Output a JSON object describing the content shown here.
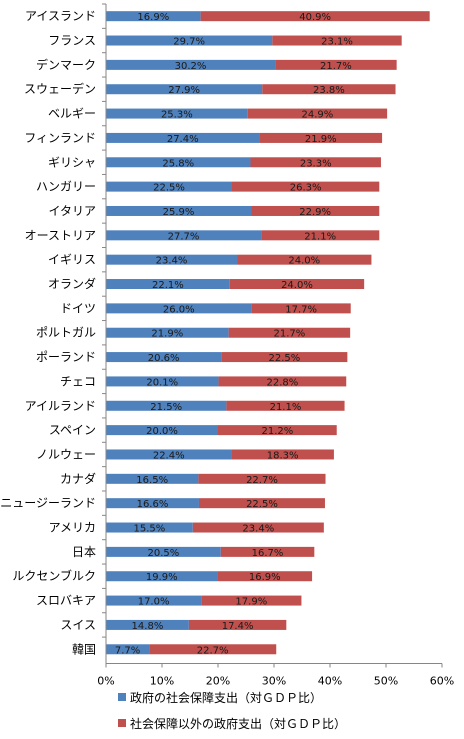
{
  "chart_data": {
    "type": "bar",
    "orientation": "horizontal",
    "stacked": true,
    "categories": [
      "アイスランド",
      "フランス",
      "デンマーク",
      "スウェーデン",
      "ベルギー",
      "フィンランド",
      "ギリシャ",
      "ハンガリー",
      "イタリア",
      "オーストリア",
      "イギリス",
      "オランダ",
      "ドイツ",
      "ポルトガル",
      "ポーランド",
      "チェコ",
      "アイルランド",
      "スペイン",
      "ノルウェー",
      "カナダ",
      "ニュージーランド",
      "アメリカ",
      "日本",
      "ルクセンブルク",
      "スロバキア",
      "スイス",
      "韓国"
    ],
    "series": [
      {
        "name": "政府の社会保障支出（対ＧＤＰ比）",
        "color": "#4f81bd",
        "values": [
          16.9,
          29.7,
          30.2,
          27.9,
          25.3,
          27.4,
          25.8,
          22.5,
          25.9,
          27.7,
          23.4,
          22.1,
          26.0,
          21.9,
          20.6,
          20.1,
          21.5,
          20.0,
          22.4,
          16.5,
          16.6,
          15.5,
          20.5,
          19.9,
          17.0,
          14.8,
          7.7
        ]
      },
      {
        "name": "社会保障以外の政府支出（対ＧＤＰ比）",
        "color": "#c0504d",
        "values": [
          40.9,
          23.1,
          21.7,
          23.8,
          24.9,
          21.9,
          23.3,
          26.3,
          22.9,
          21.1,
          24.0,
          24.0,
          17.7,
          21.7,
          22.5,
          22.8,
          21.1,
          21.2,
          18.3,
          22.7,
          22.5,
          23.4,
          16.7,
          16.9,
          17.9,
          17.4,
          22.7
        ]
      }
    ],
    "value_labels_1": [
      "16.9%",
      "29.7%",
      "30.2%",
      "27.9%",
      "25.3%",
      "27.4%",
      "25.8%",
      "22.5%",
      "25.9%",
      "27.7%",
      "23.4%",
      "22.1%",
      "26.0%",
      "21.9%",
      "20.6%",
      "20.1%",
      "21.5%",
      "20.0%",
      "22.4%",
      "16.5%",
      "16.6%",
      "15.5%",
      "20.5%",
      "19.9%",
      "17.0%",
      "14.8%",
      "7.7%"
    ],
    "value_labels_2": [
      "40.9%",
      "23.1%",
      "21.7%",
      "23.8%",
      "24.9%",
      "21.9%",
      "23.3%",
      "26.3%",
      "22.9%",
      "21.1%",
      "24.0%",
      "24.0%",
      "17.7%",
      "21.7%",
      "22.5%",
      "22.8%",
      "21.1%",
      "21.2%",
      "18.3%",
      "22.7%",
      "22.5%",
      "23.4%",
      "16.7%",
      "16.9%",
      "17.9%",
      "17.4%",
      "22.7%"
    ],
    "x_ticks": [
      0,
      10,
      20,
      30,
      40,
      50,
      60
    ],
    "x_tick_labels": [
      "0%",
      "10%",
      "20%",
      "30%",
      "40%",
      "50%",
      "60%"
    ],
    "xlim": [
      0,
      60
    ],
    "title": "",
    "xlabel": "",
    "ylabel": "",
    "grid": false,
    "legend_position": "bottom"
  }
}
